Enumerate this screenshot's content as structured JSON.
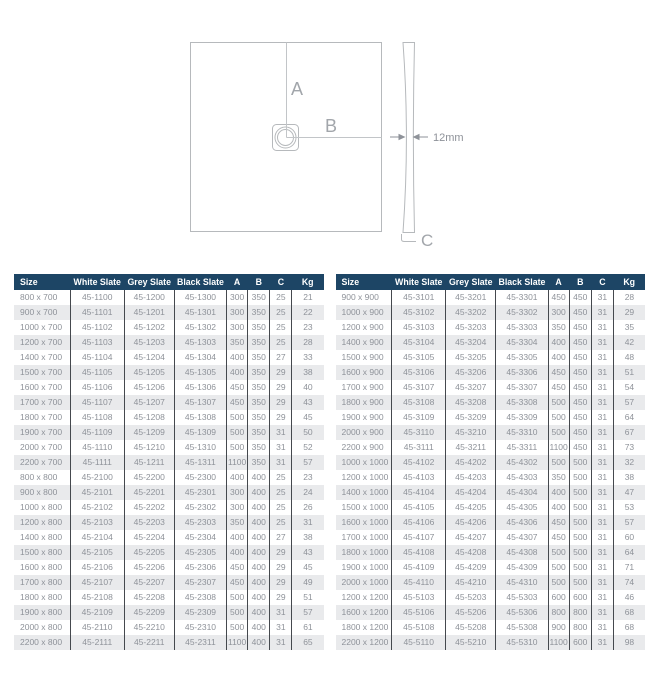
{
  "diagram": {
    "label_a": "A",
    "label_b": "B",
    "label_c": "C",
    "thickness": "12mm"
  },
  "tables": {
    "columns": [
      "Size",
      "White Slate",
      "Grey Slate",
      "Black Slate",
      "A",
      "B",
      "C",
      "Kg"
    ],
    "left": {
      "rows": [
        [
          "800 x 700",
          "45-1100",
          "45-1200",
          "45-1300",
          "300",
          "350",
          "25",
          "21"
        ],
        [
          "900 x 700",
          "45-1101",
          "45-1201",
          "45-1301",
          "300",
          "350",
          "25",
          "22"
        ],
        [
          "1000 x 700",
          "45-1102",
          "45-1202",
          "45-1302",
          "300",
          "350",
          "25",
          "23"
        ],
        [
          "1200 x 700",
          "45-1103",
          "45-1203",
          "45-1303",
          "350",
          "350",
          "25",
          "28"
        ],
        [
          "1400 x 700",
          "45-1104",
          "45-1204",
          "45-1304",
          "400",
          "350",
          "27",
          "33"
        ],
        [
          "1500 x 700",
          "45-1105",
          "45-1205",
          "45-1305",
          "400",
          "350",
          "29",
          "38"
        ],
        [
          "1600 x 700",
          "45-1106",
          "45-1206",
          "45-1306",
          "450",
          "350",
          "29",
          "40"
        ],
        [
          "1700 x 700",
          "45-1107",
          "45-1207",
          "45-1307",
          "450",
          "350",
          "29",
          "43"
        ],
        [
          "1800 x 700",
          "45-1108",
          "45-1208",
          "45-1308",
          "500",
          "350",
          "29",
          "45"
        ],
        [
          "1900 x 700",
          "45-1109",
          "45-1209",
          "45-1309",
          "500",
          "350",
          "31",
          "50"
        ],
        [
          "2000 x 700",
          "45-1110",
          "45-1210",
          "45-1310",
          "500",
          "350",
          "31",
          "52"
        ],
        [
          "2200 x 700",
          "45-1111",
          "45-1211",
          "45-1311",
          "1100",
          "350",
          "31",
          "57"
        ],
        [
          "800 x 800",
          "45-2100",
          "45-2200",
          "45-2300",
          "400",
          "400",
          "25",
          "23"
        ],
        [
          "900 x 800",
          "45-2101",
          "45-2201",
          "45-2301",
          "300",
          "400",
          "25",
          "24"
        ],
        [
          "1000 x 800",
          "45-2102",
          "45-2202",
          "45-2302",
          "300",
          "400",
          "25",
          "26"
        ],
        [
          "1200 x 800",
          "45-2103",
          "45-2203",
          "45-2303",
          "350",
          "400",
          "25",
          "31"
        ],
        [
          "1400 x 800",
          "45-2104",
          "45-2204",
          "45-2304",
          "400",
          "400",
          "27",
          "38"
        ],
        [
          "1500 x 800",
          "45-2105",
          "45-2205",
          "45-2305",
          "400",
          "400",
          "29",
          "43"
        ],
        [
          "1600 x 800",
          "45-2106",
          "45-2206",
          "45-2306",
          "450",
          "400",
          "29",
          "45"
        ],
        [
          "1700 x 800",
          "45-2107",
          "45-2207",
          "45-2307",
          "450",
          "400",
          "29",
          "49"
        ],
        [
          "1800 x 800",
          "45-2108",
          "45-2208",
          "45-2308",
          "500",
          "400",
          "29",
          "51"
        ],
        [
          "1900 x 800",
          "45-2109",
          "45-2209",
          "45-2309",
          "500",
          "400",
          "31",
          "57"
        ],
        [
          "2000 x 800",
          "45-2110",
          "45-2210",
          "45-2310",
          "500",
          "400",
          "31",
          "61"
        ],
        [
          "2200 x 800",
          "45-2111",
          "45-2211",
          "45-2311",
          "1100",
          "400",
          "31",
          "65"
        ]
      ]
    },
    "right": {
      "rows": [
        [
          "900 x 900",
          "45-3101",
          "45-3201",
          "45-3301",
          "450",
          "450",
          "31",
          "28"
        ],
        [
          "1000 x 900",
          "45-3102",
          "45-3202",
          "45-3302",
          "300",
          "450",
          "31",
          "29"
        ],
        [
          "1200 x 900",
          "45-3103",
          "45-3203",
          "45-3303",
          "350",
          "450",
          "31",
          "35"
        ],
        [
          "1400 x 900",
          "45-3104",
          "45-3204",
          "45-3304",
          "400",
          "450",
          "31",
          "42"
        ],
        [
          "1500 x 900",
          "45-3105",
          "45-3205",
          "45-3305",
          "400",
          "450",
          "31",
          "48"
        ],
        [
          "1600 x 900",
          "45-3106",
          "45-3206",
          "45-3306",
          "450",
          "450",
          "31",
          "51"
        ],
        [
          "1700 x 900",
          "45-3107",
          "45-3207",
          "45-3307",
          "450",
          "450",
          "31",
          "54"
        ],
        [
          "1800 x 900",
          "45-3108",
          "45-3208",
          "45-3308",
          "500",
          "450",
          "31",
          "57"
        ],
        [
          "1900 x 900",
          "45-3109",
          "45-3209",
          "45-3309",
          "500",
          "450",
          "31",
          "64"
        ],
        [
          "2000 x 900",
          "45-3110",
          "45-3210",
          "45-3310",
          "500",
          "450",
          "31",
          "67"
        ],
        [
          "2200 x 900",
          "45-3111",
          "45-3211",
          "45-3311",
          "1100",
          "450",
          "31",
          "73"
        ],
        [
          "1000 x 1000",
          "45-4102",
          "45-4202",
          "45-4302",
          "500",
          "500",
          "31",
          "32"
        ],
        [
          "1200 x 1000",
          "45-4103",
          "45-4203",
          "45-4303",
          "350",
          "500",
          "31",
          "38"
        ],
        [
          "1400 x 1000",
          "45-4104",
          "45-4204",
          "45-4304",
          "400",
          "500",
          "31",
          "47"
        ],
        [
          "1500 x 1000",
          "45-4105",
          "45-4205",
          "45-4305",
          "400",
          "500",
          "31",
          "53"
        ],
        [
          "1600 x 1000",
          "45-4106",
          "45-4206",
          "45-4306",
          "450",
          "500",
          "31",
          "57"
        ],
        [
          "1700 x 1000",
          "45-4107",
          "45-4207",
          "45-4307",
          "450",
          "500",
          "31",
          "60"
        ],
        [
          "1800 x 1000",
          "45-4108",
          "45-4208",
          "45-4308",
          "500",
          "500",
          "31",
          "64"
        ],
        [
          "1900 x 1000",
          "45-4109",
          "45-4209",
          "45-4309",
          "500",
          "500",
          "31",
          "71"
        ],
        [
          "2000 x 1000",
          "45-4110",
          "45-4210",
          "45-4310",
          "500",
          "500",
          "31",
          "74"
        ],
        [
          "1200 x 1200",
          "45-5103",
          "45-5203",
          "45-5303",
          "600",
          "600",
          "31",
          "46"
        ],
        [
          "1600 x 1200",
          "45-5106",
          "45-5206",
          "45-5306",
          "800",
          "800",
          "31",
          "68"
        ],
        [
          "1800 x 1200",
          "45-5108",
          "45-5208",
          "45-5308",
          "900",
          "800",
          "31",
          "68"
        ],
        [
          "2200 x 1200",
          "45-5110",
          "45-5210",
          "45-5310",
          "1100",
          "600",
          "31",
          "98"
        ]
      ]
    }
  },
  "colors": {
    "header_bg": "#1d4565",
    "header_text": "#ffffff",
    "body_text": "#8e9299",
    "row_stripe": "#e9eaec",
    "divider": "#45494e",
    "diagram_line": "#b6b9bc"
  }
}
